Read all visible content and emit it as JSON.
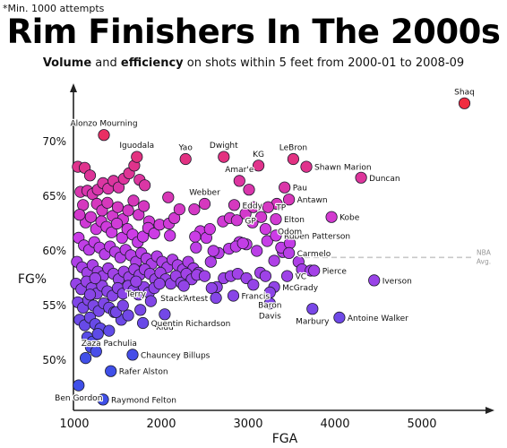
{
  "note": "*Min. 1000 attempts",
  "chart_data": {
    "type": "scatter",
    "title": "Rim Finishers In The 2000s",
    "subtitle": {
      "bold1": "Volume",
      "mid1": " and ",
      "bold2": "efficiency",
      "rest": " on shots within 5 feet from 2000-01 to 2008-09"
    },
    "xlabel": "FGA",
    "ylabel": "FG%",
    "xlim": [
      950,
      5700
    ],
    "ylim": [
      0.46,
      0.76
    ],
    "xticks": [
      {
        "v": 1000,
        "label": "1000"
      },
      {
        "v": 2000,
        "label": "2000"
      },
      {
        "v": 3000,
        "label": "3000"
      },
      {
        "v": 4000,
        "label": "4000"
      },
      {
        "v": 5000,
        "label": "5000"
      }
    ],
    "yticks": [
      {
        "v": 0.7,
        "label": "70%"
      },
      {
        "v": 0.65,
        "label": "65%"
      },
      {
        "v": 0.6,
        "label": "60%"
      },
      {
        "v": 0.55,
        "label": "55%"
      },
      {
        "v": 0.5,
        "label": "50%"
      }
    ],
    "reference": {
      "value": 0.594,
      "label1": "NBA",
      "label2": "Avg."
    },
    "color_low": "#3f4fe8",
    "color_high": "#f02c40",
    "labeled_points": [
      {
        "label": "Shaq",
        "x": 5490,
        "y": 0.735,
        "pos": "above"
      },
      {
        "label": "Alonzo Mourning",
        "x": 1340,
        "y": 0.706,
        "pos": "above"
      },
      {
        "label": "Dwight",
        "x": 2720,
        "y": 0.686,
        "pos": "above"
      },
      {
        "label": "LeBron",
        "x": 3520,
        "y": 0.684,
        "pos": "above"
      },
      {
        "label": "Yao",
        "x": 2280,
        "y": 0.684,
        "pos": "above"
      },
      {
        "label": "Iguodala",
        "x": 1720,
        "y": 0.686,
        "pos": "above"
      },
      {
        "label": "KG",
        "x": 3120,
        "y": 0.678,
        "pos": "above"
      },
      {
        "label": "Shawn Marion",
        "x": 3670,
        "y": 0.677,
        "pos": "right"
      },
      {
        "label": "Amar'e",
        "x": 2900,
        "y": 0.664,
        "pos": "above"
      },
      {
        "label": "Duncan",
        "x": 4300,
        "y": 0.667,
        "pos": "right"
      },
      {
        "label": "Pau",
        "x": 3420,
        "y": 0.658,
        "pos": "right"
      },
      {
        "label": "Antawn",
        "x": 3470,
        "y": 0.647,
        "pos": "right"
      },
      {
        "label": "Webber",
        "x": 2500,
        "y": 0.643,
        "pos": "above"
      },
      {
        "label": "Eddy",
        "x": 2840,
        "y": 0.642,
        "pos": "right"
      },
      {
        "label": "TP",
        "x": 3230,
        "y": 0.64,
        "pos": "right"
      },
      {
        "label": "Kobe",
        "x": 3960,
        "y": 0.631,
        "pos": "right"
      },
      {
        "label": "Elton",
        "x": 3320,
        "y": 0.629,
        "pos": "right"
      },
      {
        "label": "GP",
        "x": 2870,
        "y": 0.628,
        "pos": "right"
      },
      {
        "label": "Ruben Patterson",
        "x": 3320,
        "y": 0.614,
        "pos": "right"
      },
      {
        "label": "Odom",
        "x": 3480,
        "y": 0.607,
        "pos": "above"
      },
      {
        "label": "Carmelo",
        "x": 3470,
        "y": 0.598,
        "pos": "right"
      },
      {
        "label": "Pierce",
        "x": 3760,
        "y": 0.582,
        "pos": "right"
      },
      {
        "label": "Iverson",
        "x": 4450,
        "y": 0.573,
        "pos": "right"
      },
      {
        "label": "VC",
        "x": 3450,
        "y": 0.577,
        "pos": "right"
      },
      {
        "label": "McGrady",
        "x": 3300,
        "y": 0.567,
        "pos": "right"
      },
      {
        "label": "Terry",
        "x": 1710,
        "y": 0.572,
        "pos": "below"
      },
      {
        "label": "Stackhouse",
        "x": 2260,
        "y": 0.568,
        "pos": "below"
      },
      {
        "label": "Artest",
        "x": 2630,
        "y": 0.557,
        "pos": "left"
      },
      {
        "label": "Francis",
        "x": 2830,
        "y": 0.559,
        "pos": "right"
      },
      {
        "label": "Baron",
        "x": 3250,
        "y": 0.562,
        "pos": "below"
      },
      {
        "label": "Davis",
        "x": 3250,
        "y": 0.552,
        "pos": "below"
      },
      {
        "label": "Kidd",
        "x": 2040,
        "y": 0.542,
        "pos": "below"
      },
      {
        "label": "Marbury",
        "x": 3740,
        "y": 0.547,
        "pos": "below"
      },
      {
        "label": "Antoine Walker",
        "x": 4050,
        "y": 0.539,
        "pos": "right"
      },
      {
        "label": "Quentin Richardson",
        "x": 1790,
        "y": 0.534,
        "pos": "right"
      },
      {
        "label": "Zaza Pachulia",
        "x": 1400,
        "y": 0.527,
        "pos": "below"
      },
      {
        "label": "Chauncey Billups",
        "x": 1670,
        "y": 0.505,
        "pos": "right"
      },
      {
        "label": "Rafer Alston",
        "x": 1420,
        "y": 0.49,
        "pos": "right"
      },
      {
        "label": "Ben Gordon",
        "x": 1050,
        "y": 0.477,
        "pos": "below"
      },
      {
        "label": "Raymond Felton",
        "x": 1330,
        "y": 0.464,
        "pos": "right"
      }
    ],
    "points": [
      [
        1040,
        0.677
      ],
      [
        1120,
        0.676
      ],
      [
        1180,
        0.669
      ],
      [
        1070,
        0.654
      ],
      [
        1100,
        0.642
      ],
      [
        1150,
        0.655
      ],
      [
        1210,
        0.652
      ],
      [
        1270,
        0.656
      ],
      [
        1330,
        0.662
      ],
      [
        1390,
        0.657
      ],
      [
        1450,
        0.664
      ],
      [
        1510,
        0.658
      ],
      [
        1570,
        0.666
      ],
      [
        1630,
        0.671
      ],
      [
        1690,
        0.678
      ],
      [
        1750,
        0.665
      ],
      [
        1810,
        0.66
      ],
      [
        1260,
        0.643
      ],
      [
        1320,
        0.637
      ],
      [
        1380,
        0.644
      ],
      [
        1440,
        0.632
      ],
      [
        1500,
        0.64
      ],
      [
        1560,
        0.629
      ],
      [
        1620,
        0.637
      ],
      [
        1680,
        0.646
      ],
      [
        1740,
        0.633
      ],
      [
        1800,
        0.641
      ],
      [
        1860,
        0.627
      ],
      [
        1130,
        0.626
      ],
      [
        1190,
        0.631
      ],
      [
        1060,
        0.633
      ],
      [
        1250,
        0.62
      ],
      [
        1310,
        0.627
      ],
      [
        1370,
        0.622
      ],
      [
        1430,
        0.617
      ],
      [
        1490,
        0.625
      ],
      [
        1550,
        0.612
      ],
      [
        1610,
        0.62
      ],
      [
        1670,
        0.615
      ],
      [
        1730,
        0.608
      ],
      [
        1790,
        0.613
      ],
      [
        1850,
        0.621
      ],
      [
        1920,
        0.616
      ],
      [
        1980,
        0.624
      ],
      [
        2090,
        0.625
      ],
      [
        2150,
        0.63
      ],
      [
        2210,
        0.638
      ],
      [
        2080,
        0.649
      ],
      [
        2380,
        0.638
      ],
      [
        2450,
        0.618
      ],
      [
        2390,
        0.613
      ],
      [
        2520,
        0.612
      ],
      [
        2560,
        0.62
      ],
      [
        2100,
        0.614
      ],
      [
        1050,
        0.612
      ],
      [
        1110,
        0.605
      ],
      [
        1170,
        0.601
      ],
      [
        1230,
        0.608
      ],
      [
        1290,
        0.603
      ],
      [
        1350,
        0.597
      ],
      [
        1410,
        0.604
      ],
      [
        1470,
        0.599
      ],
      [
        1530,
        0.594
      ],
      [
        1590,
        0.601
      ],
      [
        1650,
        0.596
      ],
      [
        1710,
        0.59
      ],
      [
        1770,
        0.598
      ],
      [
        1830,
        0.593
      ],
      [
        1890,
        0.588
      ],
      [
        1950,
        0.595
      ],
      [
        2010,
        0.59
      ],
      [
        2070,
        0.585
      ],
      [
        2130,
        0.592
      ],
      [
        2190,
        0.587
      ],
      [
        2250,
        0.583
      ],
      [
        2310,
        0.59
      ],
      [
        2370,
        0.584
      ],
      [
        2430,
        0.58
      ],
      [
        1030,
        0.59
      ],
      [
        1090,
        0.585
      ],
      [
        1150,
        0.58
      ],
      [
        1210,
        0.587
      ],
      [
        1270,
        0.581
      ],
      [
        1330,
        0.577
      ],
      [
        1390,
        0.584
      ],
      [
        1450,
        0.579
      ],
      [
        1510,
        0.574
      ],
      [
        1570,
        0.581
      ],
      [
        1630,
        0.576
      ],
      [
        1690,
        0.583
      ],
      [
        1750,
        0.578
      ],
      [
        1810,
        0.583
      ],
      [
        1870,
        0.579
      ],
      [
        1930,
        0.574
      ],
      [
        1990,
        0.58
      ],
      [
        2050,
        0.574
      ],
      [
        2110,
        0.57
      ],
      [
        2170,
        0.577
      ],
      [
        2230,
        0.571
      ],
      [
        2290,
        0.579
      ],
      [
        2350,
        0.574
      ],
      [
        2410,
        0.578
      ],
      [
        1020,
        0.57
      ],
      [
        1080,
        0.565
      ],
      [
        1140,
        0.572
      ],
      [
        1200,
        0.566
      ],
      [
        1260,
        0.561
      ],
      [
        1320,
        0.568
      ],
      [
        1380,
        0.563
      ],
      [
        1440,
        0.559
      ],
      [
        1500,
        0.566
      ],
      [
        1560,
        0.561
      ],
      [
        1620,
        0.568
      ],
      [
        1680,
        0.564
      ],
      [
        1740,
        0.56
      ],
      [
        1800,
        0.567
      ],
      [
        1860,
        0.562
      ],
      [
        1920,
        0.566
      ],
      [
        1980,
        0.57
      ],
      [
        1040,
        0.553
      ],
      [
        1100,
        0.548
      ],
      [
        1160,
        0.555
      ],
      [
        1220,
        0.55
      ],
      [
        1280,
        0.545
      ],
      [
        1340,
        0.552
      ],
      [
        1400,
        0.548
      ],
      [
        1460,
        0.544
      ],
      [
        1060,
        0.537
      ],
      [
        1120,
        0.532
      ],
      [
        1180,
        0.539
      ],
      [
        1240,
        0.533
      ],
      [
        1300,
        0.529
      ],
      [
        1150,
        0.521
      ],
      [
        1210,
        0.517
      ],
      [
        1270,
        0.524
      ],
      [
        1190,
        0.512
      ],
      [
        1250,
        0.508
      ],
      [
        1130,
        0.502
      ],
      [
        1540,
        0.537
      ],
      [
        1620,
        0.541
      ],
      [
        1760,
        0.546
      ],
      [
        1880,
        0.554
      ],
      [
        2640,
        0.567
      ],
      [
        2720,
        0.575
      ],
      [
        2800,
        0.577
      ],
      [
        2880,
        0.579
      ],
      [
        2980,
        0.575
      ],
      [
        3060,
        0.569
      ],
      [
        3140,
        0.58
      ],
      [
        3200,
        0.577
      ],
      [
        2660,
        0.598
      ],
      [
        2780,
        0.602
      ],
      [
        2900,
        0.608
      ],
      [
        2980,
        0.606
      ],
      [
        3100,
        0.6
      ],
      [
        3220,
        0.609
      ],
      [
        3300,
        0.591
      ],
      [
        3400,
        0.599
      ],
      [
        3580,
        0.59
      ],
      [
        2860,
        0.604
      ],
      [
        2940,
        0.607
      ],
      [
        2710,
        0.627
      ],
      [
        2790,
        0.63
      ],
      [
        2970,
        0.634
      ],
      [
        3050,
        0.626
      ],
      [
        3150,
        0.631
      ],
      [
        3330,
        0.643
      ],
      [
        3010,
        0.656
      ],
      [
        3060,
        0.64
      ],
      [
        3380,
        0.603
      ],
      [
        3620,
        0.583
      ],
      [
        3720,
        0.582
      ],
      [
        2580,
        0.566
      ],
      [
        2500,
        0.577
      ],
      [
        2570,
        0.59
      ],
      [
        2600,
        0.6
      ],
      [
        3200,
        0.62
      ],
      [
        1480,
        0.544
      ],
      [
        1560,
        0.55
      ],
      [
        2400,
        0.603
      ],
      [
        1240,
        0.575
      ],
      [
        1180,
        0.56
      ]
    ]
  }
}
